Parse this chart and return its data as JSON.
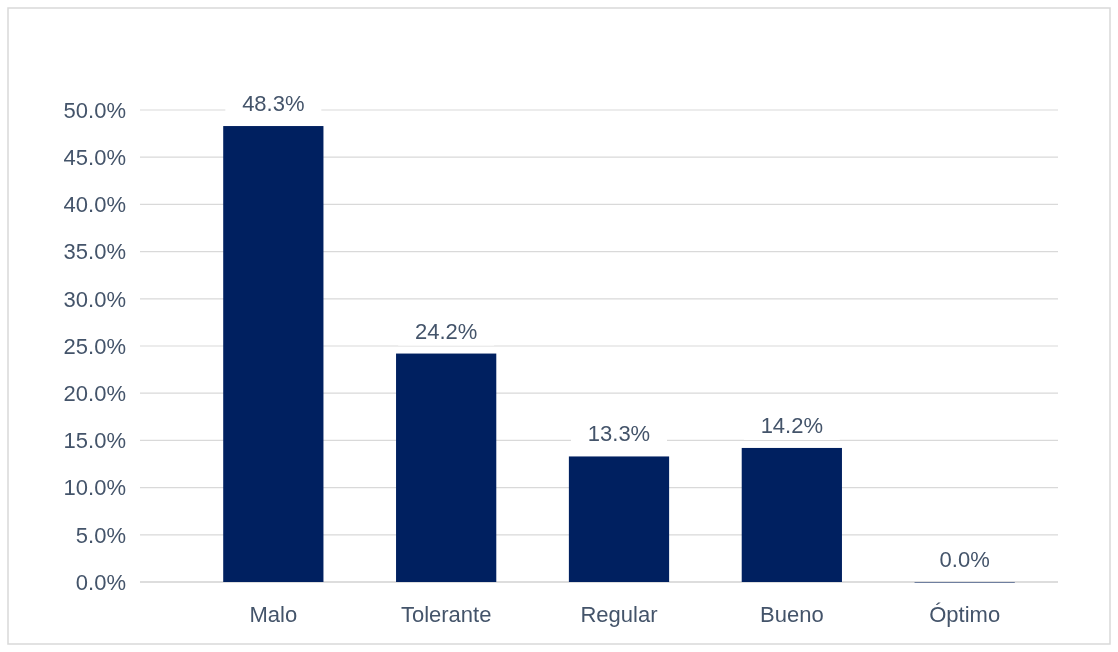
{
  "chart_data": {
    "type": "bar",
    "categories": [
      "Malo",
      "Tolerante",
      "Regular",
      "Bueno",
      "Óptimo"
    ],
    "values": [
      48.3,
      24.2,
      13.3,
      14.2,
      0.0
    ],
    "value_labels": [
      "48.3%",
      "24.2%",
      "13.3%",
      "14.2%",
      "0.0%"
    ],
    "color": "#002060",
    "ylim": [
      0,
      50
    ],
    "yticks": [
      {
        "value": 0,
        "label": "0.0%"
      },
      {
        "value": 5,
        "label": "5.0%"
      },
      {
        "value": 10,
        "label": "10.0%"
      },
      {
        "value": 15,
        "label": "15.0%"
      },
      {
        "value": 20,
        "label": "20.0%"
      },
      {
        "value": 25,
        "label": "25.0%"
      },
      {
        "value": 30,
        "label": "30.0%"
      },
      {
        "value": 35,
        "label": "35.0%"
      },
      {
        "value": 40,
        "label": "40.0%"
      },
      {
        "value": 45,
        "label": "45.0%"
      },
      {
        "value": 50,
        "label": "50.0%"
      }
    ],
    "grid": "y"
  }
}
